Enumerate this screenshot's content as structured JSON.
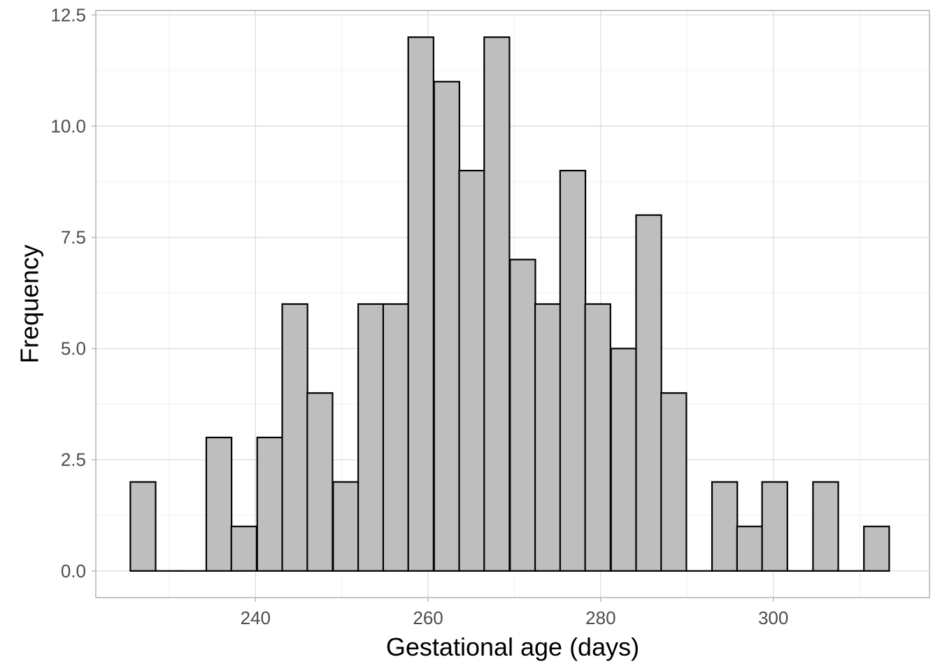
{
  "chart_data": {
    "type": "bar",
    "subtype": "histogram",
    "title": "",
    "xlabel": "Gestational age (days)",
    "ylabel": "Frequency",
    "bin_width": 2.93,
    "bins": [
      {
        "start": 225.5,
        "count": 2
      },
      {
        "start": 228.5,
        "count": 0
      },
      {
        "start": 231.4,
        "count": 0
      },
      {
        "start": 234.3,
        "count": 3
      },
      {
        "start": 237.2,
        "count": 1
      },
      {
        "start": 240.2,
        "count": 3
      },
      {
        "start": 243.1,
        "count": 6
      },
      {
        "start": 246.0,
        "count": 4
      },
      {
        "start": 249.0,
        "count": 2
      },
      {
        "start": 251.9,
        "count": 6
      },
      {
        "start": 254.8,
        "count": 6
      },
      {
        "start": 257.7,
        "count": 12
      },
      {
        "start": 260.7,
        "count": 11
      },
      {
        "start": 263.6,
        "count": 9
      },
      {
        "start": 266.5,
        "count": 12
      },
      {
        "start": 269.5,
        "count": 7
      },
      {
        "start": 272.4,
        "count": 6
      },
      {
        "start": 275.3,
        "count": 9
      },
      {
        "start": 278.2,
        "count": 6
      },
      {
        "start": 281.2,
        "count": 5
      },
      {
        "start": 284.1,
        "count": 8
      },
      {
        "start": 287.0,
        "count": 4
      },
      {
        "start": 290.0,
        "count": 0
      },
      {
        "start": 292.9,
        "count": 2
      },
      {
        "start": 295.8,
        "count": 1
      },
      {
        "start": 298.7,
        "count": 2
      },
      {
        "start": 301.7,
        "count": 0
      },
      {
        "start": 304.6,
        "count": 2
      },
      {
        "start": 307.5,
        "count": 0
      },
      {
        "start": 310.5,
        "count": 1
      }
    ],
    "xlim": [
      221.5,
      318.1
    ],
    "ylim": [
      -0.6,
      12.6
    ],
    "x_ticks": [
      240,
      260,
      280,
      300
    ],
    "x_tick_labels": [
      "240",
      "260",
      "280",
      "300"
    ],
    "x_minor_ticks": [
      230,
      250,
      270,
      290,
      310
    ],
    "y_ticks": [
      0,
      2.5,
      5,
      7.5,
      10,
      12.5
    ],
    "y_tick_labels": [
      "0.0",
      "2.5",
      "5.0",
      "7.5",
      "10.0",
      "12.5"
    ],
    "y_minor_ticks": [
      1.25,
      3.75,
      6.25,
      8.75,
      11.25
    ],
    "grid": true,
    "legend": "none",
    "colors": {
      "bar_fill": "#bebebe",
      "bar_outline": "#000000",
      "background": "#ffffff"
    }
  }
}
